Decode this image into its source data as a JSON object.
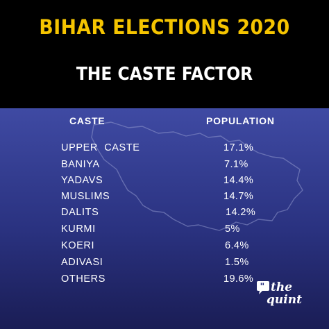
{
  "colors": {
    "header_bg": "#000000",
    "title": "#f5c400",
    "subtitle": "#ffffff",
    "panel_gradient_top": "#3f4aa3",
    "panel_gradient_bottom": "#1a1d55",
    "text": "#ffffff"
  },
  "header": {
    "title": "BIHAR ELECTIONS 2020",
    "subtitle": "THE CASTE FACTOR"
  },
  "logo": {
    "line1": "the",
    "line2": "quint",
    "icon": "speech-bubble-quote-icon"
  },
  "chart_data": {
    "type": "table",
    "columns": [
      "CASTE",
      "POPULATION"
    ],
    "rows": [
      {
        "caste": "UPPER  CASTE",
        "population": "17.1%",
        "value": 17.1
      },
      {
        "caste": "BANIYA",
        "population": "7.1%",
        "value": 7.1
      },
      {
        "caste": "YADAVS",
        "population": "14.4%",
        "value": 14.4
      },
      {
        "caste": "MUSLIMS",
        "population": "14.7%",
        "value": 14.7
      },
      {
        "caste": "DALITS",
        "population": "14.2%",
        "value": 14.2
      },
      {
        "caste": "KURMI",
        "population": "5%",
        "value": 5
      },
      {
        "caste": "KOERI",
        "population": "6.4%",
        "value": 6.4
      },
      {
        "caste": "ADIVASI",
        "population": "1.5%",
        "value": 1.5
      },
      {
        "caste": "OTHERS",
        "population": "19.6%",
        "value": 19.6
      }
    ]
  }
}
